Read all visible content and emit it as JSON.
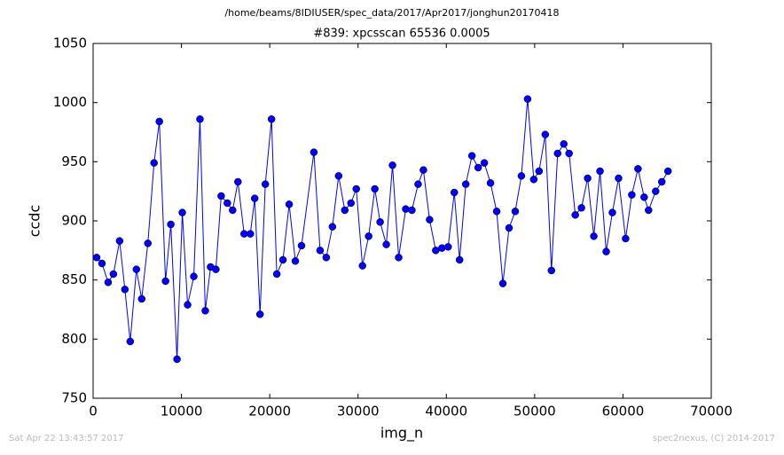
{
  "chart_data": {
    "type": "line",
    "suptitle": "/home/beams/8IDIUSER/spec_data/2017/Apr2017/jonghun20170418",
    "title": "#839: xpcsscan 65536 0.0005",
    "x_label": "img_n",
    "y_label": "ccdc",
    "footer_left": "Sat Apr 22 13:43:57 2017",
    "footer_right": "spec2nexus, (C) 2014-2017",
    "x": [
      400,
      1000,
      1700,
      2300,
      3000,
      3600,
      4200,
      4900,
      5500,
      6200,
      6900,
      7500,
      8200,
      8800,
      9500,
      10100,
      10700,
      11400,
      12100,
      12700,
      13300,
      13900,
      14500,
      15200,
      15800,
      16400,
      17100,
      17800,
      18300,
      18900,
      19500,
      20200,
      20800,
      21500,
      22200,
      22900,
      23600,
      25000,
      25700,
      26400,
      27100,
      27800,
      28500,
      29200,
      29800,
      30500,
      31200,
      31900,
      32500,
      33200,
      33900,
      34600,
      35400,
      36100,
      36800,
      37400,
      38100,
      38800,
      39500,
      40200,
      40900,
      41500,
      42200,
      42900,
      43600,
      44300,
      45000,
      45700,
      46400,
      47100,
      47800,
      48500,
      49200,
      49900,
      50500,
      51200,
      51900,
      52600,
      53300,
      53900,
      54600,
      55300,
      56000,
      56700,
      57400,
      58100,
      58800,
      59500,
      60300,
      61000,
      61700,
      62400,
      62900,
      63700,
      64400,
      65100
    ],
    "series": [
      {
        "name": "ccdc",
        "color": "#0000ff",
        "values": [
          869,
          864,
          848,
          855,
          883,
          842,
          798,
          859,
          834,
          881,
          949,
          984,
          849,
          897,
          783,
          907,
          829,
          853,
          986,
          824,
          861,
          859,
          921,
          915,
          909,
          933,
          889,
          889,
          919,
          821,
          931,
          986,
          855,
          867,
          914,
          866,
          879,
          958,
          875,
          869,
          895,
          938,
          909,
          915,
          927,
          862,
          887,
          927,
          899,
          880,
          947,
          869,
          910,
          909,
          931,
          943,
          901,
          875,
          877,
          878,
          924,
          867,
          931,
          955,
          945,
          949,
          932,
          908,
          847,
          894,
          908,
          938,
          1003,
          935,
          942,
          973,
          858,
          957,
          965,
          957,
          905,
          911,
          936,
          887,
          942,
          874,
          907,
          936,
          885,
          922,
          944,
          920,
          909,
          925,
          933,
          942
        ]
      }
    ],
    "xlim": [
      0,
      70000
    ],
    "ylim": [
      750,
      1050
    ],
    "xticks": [
      0,
      10000,
      20000,
      30000,
      40000,
      50000,
      60000,
      70000
    ],
    "yticks": [
      750,
      800,
      850,
      900,
      950,
      1000,
      1050
    ]
  }
}
